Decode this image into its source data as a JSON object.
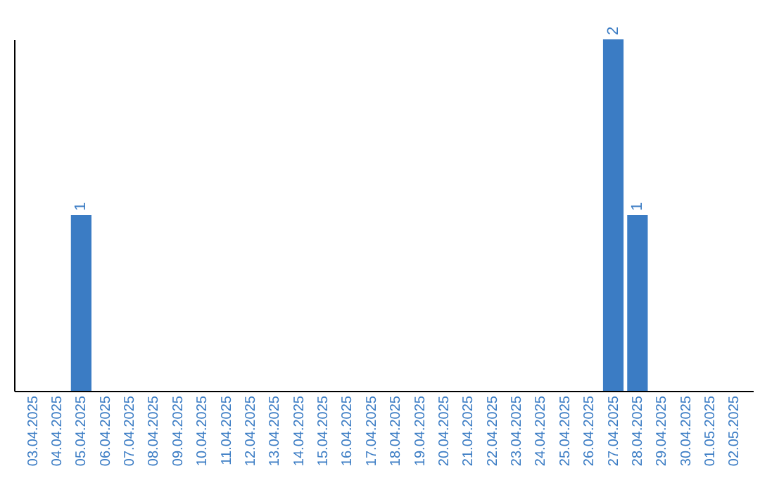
{
  "chart_data": {
    "type": "bar",
    "categories": [
      "03.04.2025",
      "04.04.2025",
      "05.04.2025",
      "06.04.2025",
      "07.04.2025",
      "08.04.2025",
      "09.04.2025",
      "10.04.2025",
      "11.04.2025",
      "12.04.2025",
      "13.04.2025",
      "14.04.2025",
      "15.04.2025",
      "16.04.2025",
      "17.04.2025",
      "18.04.2025",
      "19.04.2025",
      "20.04.2025",
      "21.04.2025",
      "22.04.2025",
      "23.04.2025",
      "24.04.2025",
      "25.04.2025",
      "26.04.2025",
      "27.04.2025",
      "28.04.2025",
      "29.04.2025",
      "30.04.2025",
      "01.05.2025",
      "02.05.2025"
    ],
    "values": [
      0,
      0,
      1,
      0,
      0,
      0,
      0,
      0,
      0,
      0,
      0,
      0,
      0,
      0,
      0,
      0,
      0,
      0,
      0,
      0,
      0,
      0,
      0,
      0,
      2,
      1,
      0,
      0,
      0,
      0
    ],
    "value_labels": [
      null,
      null,
      "1",
      null,
      null,
      null,
      null,
      null,
      null,
      null,
      null,
      null,
      null,
      null,
      null,
      null,
      null,
      null,
      null,
      null,
      null,
      null,
      null,
      null,
      "2",
      "1",
      null,
      null,
      null,
      null
    ],
    "color": "#3b7cc4",
    "tick_labels": "x",
    "grid": false
  }
}
